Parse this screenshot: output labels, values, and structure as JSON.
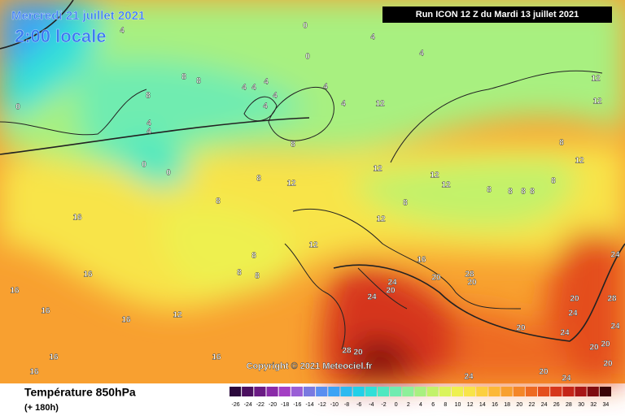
{
  "header": {
    "date": "Mercredi 21 juillet 2021",
    "time": "2:00 locale",
    "run": "Run ICON 12 Z du Mardi 13 juillet 2021"
  },
  "copyright": "Copyright © 2021 Meteociel.fr",
  "footer": {
    "variable": "Température 850hPa",
    "lead": "(+ 180h)"
  },
  "colorbar": {
    "ticks": [
      -26,
      -24,
      -22,
      -20,
      -18,
      -16,
      -14,
      -12,
      -10,
      -8,
      -6,
      -4,
      -2,
      0,
      2,
      4,
      6,
      8,
      10,
      12,
      14,
      16,
      18,
      20,
      22,
      24,
      26,
      28,
      30,
      32,
      34
    ],
    "colors": [
      "#2b0a3d",
      "#4b1060",
      "#6a1b84",
      "#8a2ba8",
      "#a43fc4",
      "#9a5fd6",
      "#7a79e0",
      "#5a8ff0",
      "#3ca3f5",
      "#2cbaf0",
      "#22d0e8",
      "#30e0d8",
      "#50e8c0",
      "#70ecb0",
      "#8ef09a",
      "#a8f080",
      "#c2f26a",
      "#daf45a",
      "#eef050",
      "#f8e44a",
      "#fcd040",
      "#fcb838",
      "#f8a030",
      "#f48628",
      "#ee6a22",
      "#e44e1e",
      "#d6361c",
      "#c42418",
      "#a81616",
      "#7e0c10",
      "#3a0508"
    ]
  },
  "contour_labels": [
    0,
    4,
    4,
    0,
    4,
    0,
    4,
    4,
    8,
    8,
    8,
    4,
    4,
    4,
    4,
    4,
    8,
    4,
    4,
    0,
    0,
    8,
    8,
    12,
    8,
    12,
    8,
    12,
    12,
    12,
    12,
    8,
    8,
    8,
    12,
    8,
    8,
    8,
    12,
    12,
    12,
    8,
    8,
    16,
    16,
    16,
    16,
    16,
    16,
    12,
    16,
    16,
    16,
    20,
    20,
    24,
    24,
    20,
    28,
    28,
    20,
    20,
    20,
    24,
    24,
    24,
    20,
    28,
    24,
    20,
    24,
    20,
    24,
    20
  ]
}
